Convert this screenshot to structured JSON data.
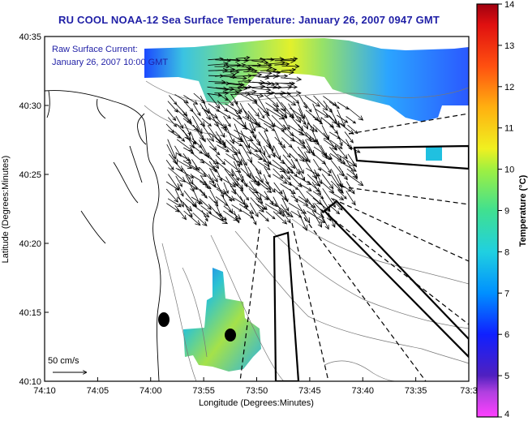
{
  "title": "RU COOL  NOAA-12  Sea Surface Temperature:  January 26, 2007 0947 GMT",
  "overlay_label": {
    "line1": "Raw Surface Current:",
    "line2": "January 26, 2007 10:00 GMT"
  },
  "scale_label": "50 cm/s",
  "axes": {
    "xlabel": "Longitude (Degrees:Minutes)",
    "ylabel": "Latitude (Degrees:Minutes)",
    "x_ticks": [
      "74:10",
      "74:05",
      "74:00",
      "73:55",
      "73:50",
      "73:45",
      "73:40",
      "73:35",
      "73:3"
    ],
    "y_ticks": [
      "40:35",
      "40:30",
      "40:25",
      "40:20",
      "40:15",
      "40:10"
    ]
  },
  "colorbar": {
    "label": "Temperature (°C)",
    "ticks": [
      "14",
      "13",
      "12",
      "11",
      "10",
      "9",
      "8",
      "7",
      "6",
      "5",
      "4"
    ],
    "range": [
      4,
      14
    ]
  },
  "colors": {
    "title": "#1f1fa6",
    "overlay_text": "#1f1fa6"
  }
}
